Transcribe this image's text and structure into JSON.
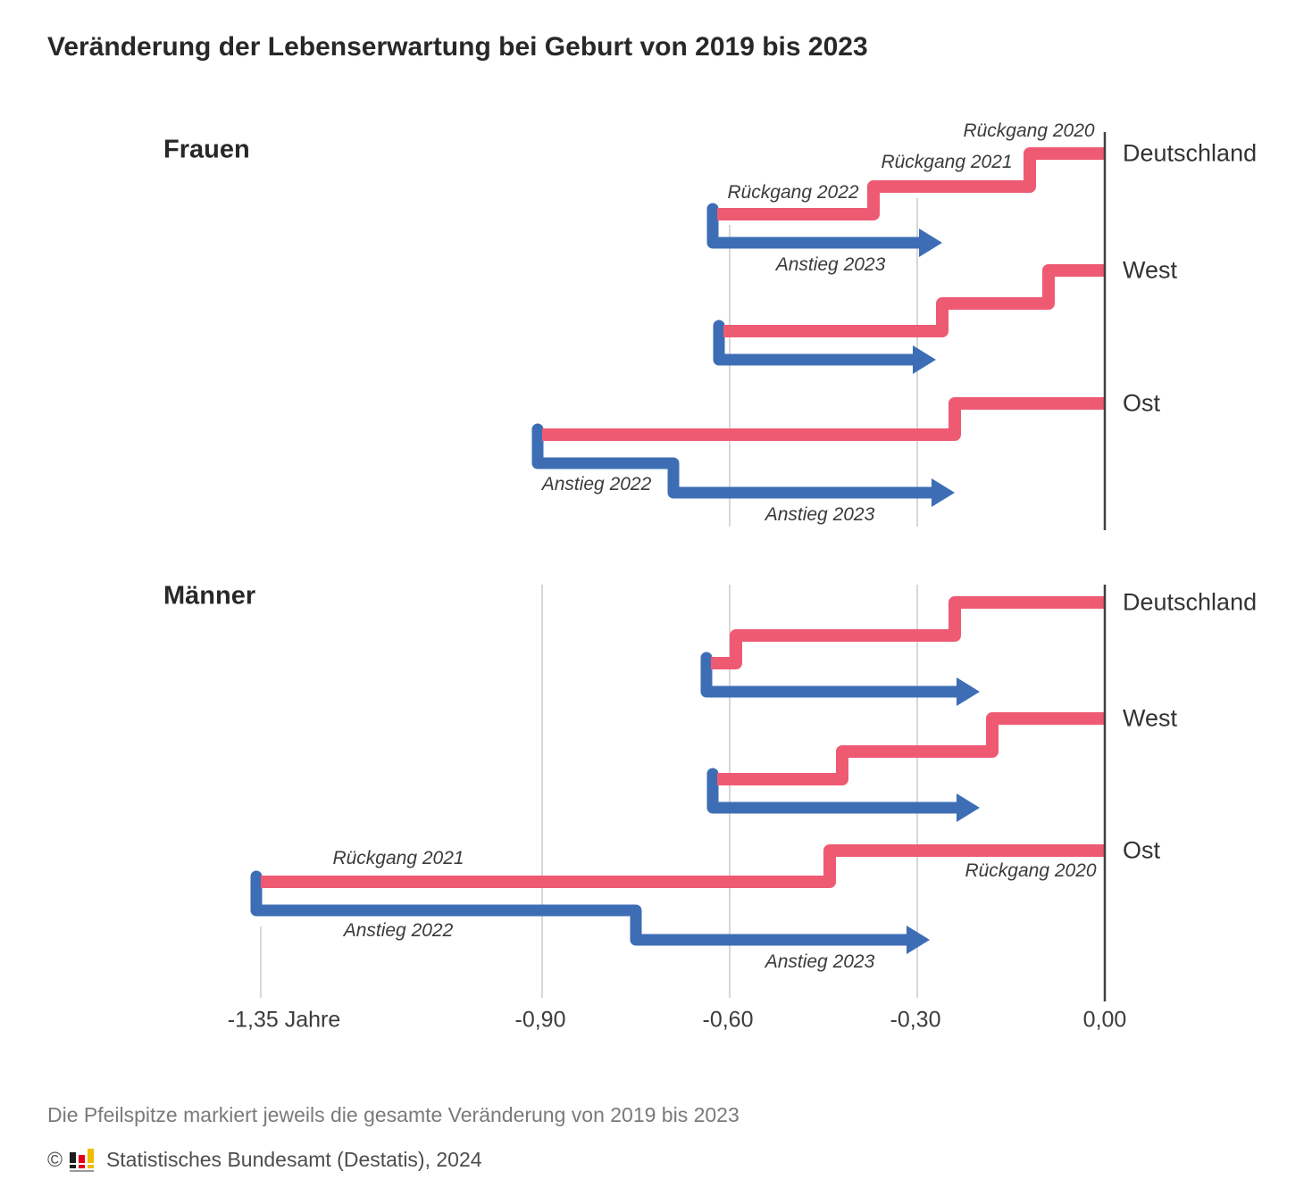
{
  "title": "Veränderung der Lebenserwartung bei Geburt von 2019 bis 2023",
  "footnote": "Die Pfeilspitze markiert jeweils die gesamte Veränderung von 2019 bis 2023",
  "source": {
    "copyright": "©",
    "publisher": "Statistisches Bundesamt (Destatis), 2024"
  },
  "colors": {
    "decline": "#ef5a73",
    "increase": "#3d6db5",
    "axis": "#3f3f3f",
    "grid": "#cacaca"
  },
  "annotations": [
    {
      "text": "Rückgang 2020",
      "panel": "Frauen",
      "group": "Deutschland"
    },
    {
      "text": "Rückgang 2021",
      "panel": "Frauen",
      "group": "Deutschland"
    },
    {
      "text": "Rückgang 2022",
      "panel": "Frauen",
      "group": "Deutschland"
    },
    {
      "text": "Anstieg 2023",
      "panel": "Frauen",
      "group": "Deutschland"
    },
    {
      "text": "Anstieg 2022",
      "panel": "Frauen",
      "group": "Ost"
    },
    {
      "text": "Anstieg 2023",
      "panel": "Frauen",
      "group": "Ost"
    },
    {
      "text": "Rückgang 2021",
      "panel": "Männer",
      "group": "Ost"
    },
    {
      "text": "Rückgang 2020",
      "panel": "Männer",
      "group": "Ost"
    },
    {
      "text": "Anstieg 2022",
      "panel": "Männer",
      "group": "Ost"
    },
    {
      "text": "Anstieg 2023",
      "panel": "Männer",
      "group": "Ost"
    }
  ],
  "chart_data": {
    "type": "waterfall-step",
    "unit": "Jahre",
    "title": "Veränderung der Lebenserwartung bei Geburt von 2019 bis 2023",
    "axis": {
      "tick_labels": [
        "-1,35 Jahre",
        "-0,90",
        "-0,60",
        "-0,30",
        "0,00"
      ],
      "tick_values": [
        -1.35,
        -0.9,
        -0.6,
        -0.3,
        0
      ],
      "range": [
        -1.5,
        0.05
      ],
      "grid": true
    },
    "arrow_note": "Die Pfeilspitze markiert jeweils die gesamte Veränderung von 2019 bis 2023",
    "panels": [
      {
        "label": "Frauen",
        "groups": [
          {
            "label": "Deutschland",
            "cumulative": {
              "2020": -0.12,
              "2021": -0.37,
              "2022": -0.62,
              "2023": -0.26
            },
            "yearly": {
              "2020": -0.12,
              "2021": -0.25,
              "2022": -0.25,
              "2023": 0.36
            }
          },
          {
            "label": "West",
            "cumulative": {
              "2020": -0.09,
              "2021": -0.26,
              "2022": -0.61,
              "2023": -0.27
            },
            "yearly": {
              "2020": -0.09,
              "2021": -0.17,
              "2022": -0.35,
              "2023": 0.34
            }
          },
          {
            "label": "Ost",
            "cumulative": {
              "2020": -0.24,
              "2021": -0.9,
              "2022": -0.69,
              "2023": -0.24
            },
            "yearly": {
              "2020": -0.24,
              "2021": -0.66,
              "2022": 0.21,
              "2023": 0.45
            }
          }
        ]
      },
      {
        "label": "Männer",
        "groups": [
          {
            "label": "Deutschland",
            "cumulative": {
              "2020": -0.24,
              "2021": -0.59,
              "2022": -0.63,
              "2023": -0.2
            },
            "yearly": {
              "2020": -0.24,
              "2021": -0.35,
              "2022": -0.04,
              "2023": 0.43
            }
          },
          {
            "label": "West",
            "cumulative": {
              "2020": -0.18,
              "2021": -0.42,
              "2022": -0.62,
              "2023": -0.2
            },
            "yearly": {
              "2020": -0.18,
              "2021": -0.24,
              "2022": -0.2,
              "2023": 0.42
            }
          },
          {
            "label": "Ost",
            "cumulative": {
              "2020": -0.44,
              "2021": -1.35,
              "2022": -0.75,
              "2023": -0.28
            },
            "yearly": {
              "2020": -0.44,
              "2021": -0.91,
              "2022": 0.6,
              "2023": 0.47
            }
          }
        ]
      }
    ]
  }
}
